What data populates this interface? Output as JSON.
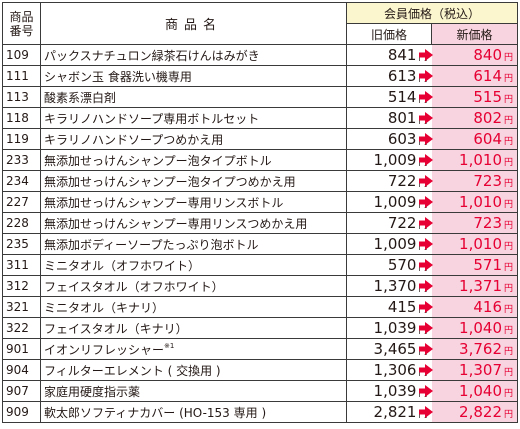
{
  "header": {
    "code_label_1": "商品",
    "code_label_2": "番号",
    "name_label": "商品名",
    "member_price_label": "会員価格（税込）",
    "old_price_label": "旧価格",
    "new_price_label": "新価格"
  },
  "yen_unit": "円",
  "colors": {
    "new_price": "#e60033",
    "new_price_bg": "#f7d4df",
    "header_bg": "#fbf6ce",
    "arrow": "#e60033"
  },
  "icons": {
    "arrow": "right-arrow-icon"
  },
  "rows": [
    {
      "code": "109",
      "name": "パックスナチュロン緑茶石けんはみがき",
      "note": "",
      "old": "841",
      "new": "840"
    },
    {
      "code": "111",
      "name": "シャボン玉 食器洗い機専用",
      "note": "",
      "old": "613",
      "new": "614"
    },
    {
      "code": "113",
      "name": "酸素系漂白剤",
      "note": "",
      "old": "514",
      "new": "515"
    },
    {
      "code": "118",
      "name": "キラリノハンドソープ専用ボトルセット",
      "note": "",
      "old": "801",
      "new": "802"
    },
    {
      "code": "119",
      "name": "キラリノハンドソープつめかえ用",
      "note": "",
      "old": "603",
      "new": "604"
    },
    {
      "code": "233",
      "name": "無添加せっけんシャンプー泡タイプボトル",
      "note": "",
      "old": "1,009",
      "new": "1,010"
    },
    {
      "code": "234",
      "name": "無添加せっけんシャンプー泡タイプつめかえ用",
      "note": "",
      "old": "722",
      "new": "723"
    },
    {
      "code": "227",
      "name": "無添加せっけんシャンプー専用リンスボトル",
      "note": "",
      "old": "1,009",
      "new": "1,010"
    },
    {
      "code": "228",
      "name": "無添加せっけんシャンプー専用リンスつめかえ用",
      "note": "",
      "old": "722",
      "new": "723"
    },
    {
      "code": "235",
      "name": "無添加ボディーソープたっぷり泡ボトル",
      "note": "",
      "old": "1,009",
      "new": "1,010"
    },
    {
      "code": "311",
      "name": "ミニタオル（オフホワイト）",
      "note": "",
      "old": "570",
      "new": "571"
    },
    {
      "code": "312",
      "name": "フェイスタオル（オフホワイト）",
      "note": "",
      "old": "1,370",
      "new": "1,371"
    },
    {
      "code": "321",
      "name": "ミニタオル（キナリ）",
      "note": "",
      "old": "415",
      "new": "416"
    },
    {
      "code": "322",
      "name": "フェイスタオル（キナリ）",
      "note": "",
      "old": "1,039",
      "new": "1,040"
    },
    {
      "code": "901",
      "name": "イオンリフレッシャー",
      "note": "※1",
      "old": "3,465",
      "new": "3,762"
    },
    {
      "code": "904",
      "name": "フィルターエレメント ( 交換用 )",
      "note": "",
      "old": "1,306",
      "new": "1,307"
    },
    {
      "code": "907",
      "name": "家庭用硬度指示薬",
      "note": "",
      "old": "1,039",
      "new": "1,040"
    },
    {
      "code": "909",
      "name": "軟太郎ソフティナカバー (HO-153 専用 )",
      "note": "",
      "old": "2,821",
      "new": "2,822"
    }
  ]
}
